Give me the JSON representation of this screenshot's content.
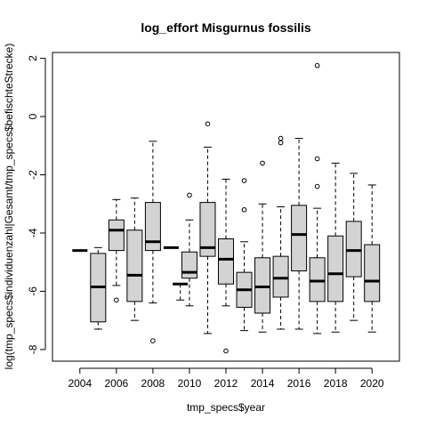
{
  "chart_data": {
    "type": "box",
    "title": "log_effort Misgurnus fossilis",
    "xlabel": "tmp_specs$year",
    "ylabel": "log(tmp_specs$individuenzahl|Gesamt/tmp_specs$befischteStrecke)",
    "xlim": [
      2002.5,
      2021.5
    ],
    "ylim": [
      -8.4,
      2.2
    ],
    "x_ticks": [
      2004,
      2006,
      2008,
      2010,
      2012,
      2014,
      2016,
      2018,
      2020
    ],
    "x_tick_labels": [
      "2004",
      "2006",
      "2008",
      "2010",
      "2012",
      "2014",
      "2016",
      "2018",
      "2020"
    ],
    "y_ticks": [
      -8,
      -6,
      -4,
      -2,
      0,
      2
    ],
    "y_tick_labels": [
      "-8",
      "-6",
      "-4",
      "-2",
      "0",
      "2"
    ],
    "grid": false,
    "box_fill": "#d3d3d3",
    "boxes": [
      {
        "year": 2004,
        "whisker_low": -4.6,
        "q1": -4.6,
        "median": -4.6,
        "q3": -4.6,
        "whisker_high": -4.6,
        "outliers": []
      },
      {
        "year": 2005,
        "whisker_low": -7.3,
        "q1": -7.05,
        "median": -5.85,
        "q3": -4.7,
        "whisker_high": -4.5,
        "outliers": []
      },
      {
        "year": 2006,
        "whisker_low": -5.8,
        "q1": -4.6,
        "median": -3.9,
        "q3": -3.55,
        "whisker_high": -2.85,
        "outliers": [
          -6.3
        ]
      },
      {
        "year": 2007,
        "whisker_low": -7.0,
        "q1": -6.35,
        "median": -5.45,
        "q3": -3.9,
        "whisker_high": -2.8,
        "outliers": []
      },
      {
        "year": 2008,
        "whisker_low": -6.4,
        "q1": -4.6,
        "median": -4.3,
        "q3": -2.95,
        "whisker_high": -0.85,
        "outliers": [
          -7.7
        ]
      },
      {
        "year": 2009,
        "whisker_low": -4.5,
        "q1": -4.5,
        "median": -4.5,
        "q3": -4.5,
        "whisker_high": -4.5,
        "outliers": []
      },
      {
        "year": 2009.5,
        "whisker_low": -6.3,
        "q1": -5.75,
        "median": -5.75,
        "q3": -5.75,
        "whisker_high": -5.75,
        "outliers": []
      },
      {
        "year": 2010,
        "whisker_low": -6.5,
        "q1": -5.55,
        "median": -5.35,
        "q3": -4.65,
        "whisker_high": -3.55,
        "outliers": [
          -2.7
        ]
      },
      {
        "year": 2011,
        "whisker_low": -7.45,
        "q1": -4.8,
        "median": -4.5,
        "q3": -2.95,
        "whisker_high": -1.05,
        "outliers": [
          -0.25
        ]
      },
      {
        "year": 2012,
        "whisker_low": -6.5,
        "q1": -5.75,
        "median": -4.9,
        "q3": -4.2,
        "whisker_high": -2.15,
        "outliers": [
          -8.05
        ]
      },
      {
        "year": 2013,
        "whisker_low": -7.35,
        "q1": -6.55,
        "median": -5.95,
        "q3": -5.35,
        "whisker_high": -4.3,
        "outliers": [
          -2.2,
          -3.2
        ]
      },
      {
        "year": 2014,
        "whisker_low": -7.4,
        "q1": -6.75,
        "median": -5.85,
        "q3": -4.85,
        "whisker_high": -3.0,
        "outliers": [
          -1.6
        ]
      },
      {
        "year": 2015,
        "whisker_low": -7.3,
        "q1": -6.2,
        "median": -5.55,
        "q3": -4.8,
        "whisker_high": -3.1,
        "outliers": [
          -0.75,
          -0.9
        ]
      },
      {
        "year": 2016,
        "whisker_low": -7.3,
        "q1": -5.3,
        "median": -4.05,
        "q3": -3.05,
        "whisker_high": -0.75,
        "outliers": []
      },
      {
        "year": 2017,
        "whisker_low": -7.45,
        "q1": -6.35,
        "median": -5.65,
        "q3": -4.85,
        "whisker_high": -3.15,
        "outliers": [
          -2.4,
          -1.45,
          1.75
        ]
      },
      {
        "year": 2018,
        "whisker_low": -7.4,
        "q1": -6.35,
        "median": -5.4,
        "q3": -4.1,
        "whisker_high": -1.6,
        "outliers": []
      },
      {
        "year": 2019,
        "whisker_low": -7.0,
        "q1": -5.5,
        "median": -4.6,
        "q3": -3.6,
        "whisker_high": -1.95,
        "outliers": []
      },
      {
        "year": 2020,
        "whisker_low": -7.4,
        "q1": -6.35,
        "median": -5.65,
        "q3": -4.4,
        "whisker_high": -2.35,
        "outliers": []
      }
    ]
  }
}
